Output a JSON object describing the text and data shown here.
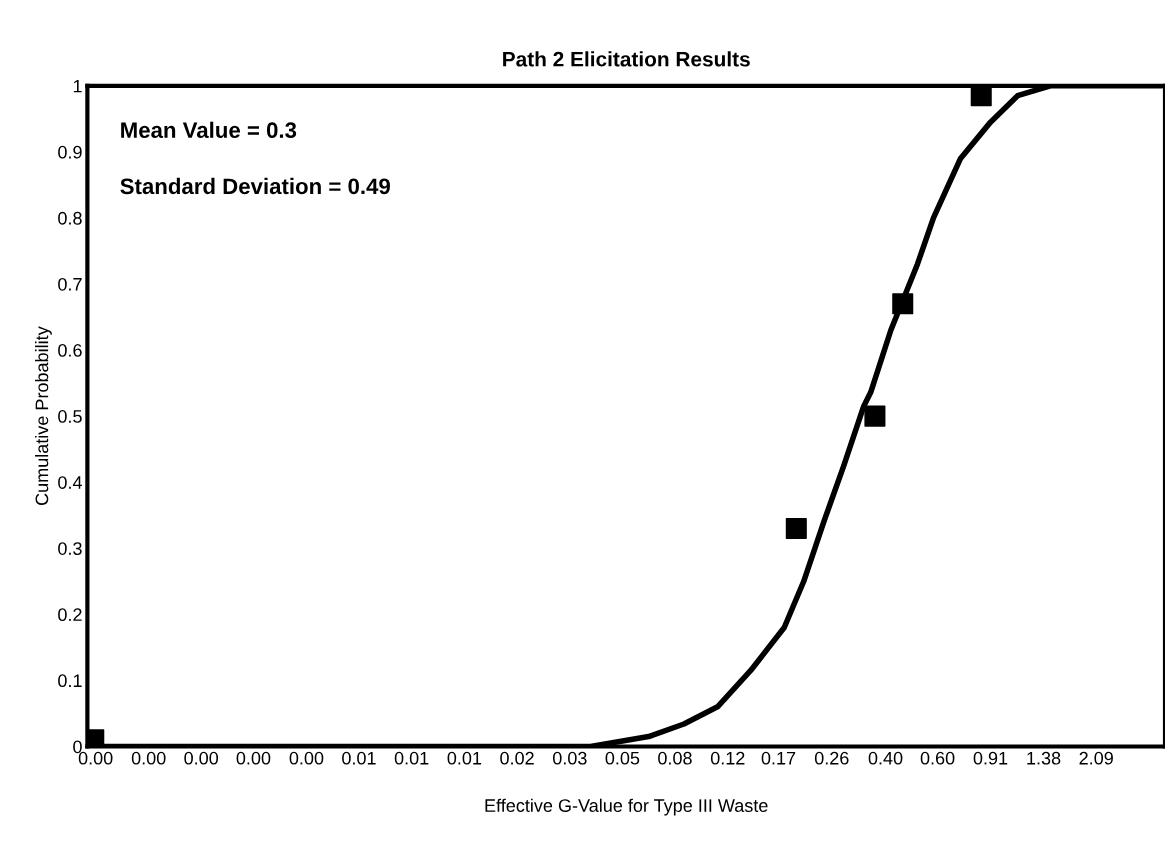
{
  "chart_data": {
    "type": "line",
    "title": "Path 2 Elicitation Results",
    "xlabel": "Effective G-Value for Type III Waste",
    "ylabel": "Cumulative Probability",
    "annotations": [
      "Mean Value = 0.3",
      "Standard Deviation = 0.49"
    ],
    "log": "x",
    "grid": false,
    "legend": false,
    "xlim": [
      0.00078,
      3.58
    ],
    "ylim": [
      0,
      1
    ],
    "xticks": [
      {
        "value": 0.000832,
        "label": "0.00"
      },
      {
        "value": 0.00126,
        "label": "0.00"
      },
      {
        "value": 0.0019,
        "label": "0.00"
      },
      {
        "value": 0.00286,
        "label": "0.00"
      },
      {
        "value": 0.00433,
        "label": "0.00"
      },
      {
        "value": 0.00653,
        "label": "0.01"
      },
      {
        "value": 0.00986,
        "label": "0.01"
      },
      {
        "value": 0.0149,
        "label": "0.01"
      },
      {
        "value": 0.0225,
        "label": "0.02"
      },
      {
        "value": 0.034,
        "label": "0.03"
      },
      {
        "value": 0.0513,
        "label": "0.05"
      },
      {
        "value": 0.0774,
        "label": "0.08"
      },
      {
        "value": 0.117,
        "label": "0.12"
      },
      {
        "value": 0.174,
        "label": "0.17"
      },
      {
        "value": 0.264,
        "label": "0.26"
      },
      {
        "value": 0.402,
        "label": "0.40"
      },
      {
        "value": 0.604,
        "label": "0.60"
      },
      {
        "value": 0.914,
        "label": "0.91"
      },
      {
        "value": 1.384,
        "label": "1.38"
      },
      {
        "value": 2.09,
        "label": "2.09"
      }
    ],
    "yticks": [
      0,
      0.1,
      0.2,
      0.3,
      0.4,
      0.5,
      0.6,
      0.7,
      0.8,
      0.9,
      1
    ],
    "series": [
      {
        "color": "#000000",
        "marker": "none",
        "line_style": "solid",
        "x": [
          0.00082,
          0.04,
          0.063,
          0.083,
          0.108,
          0.14,
          0.182,
          0.212,
          0.248,
          0.29,
          0.339,
          0.358,
          0.419,
          0.516,
          0.585,
          0.723,
          0.914,
          1.13,
          1.46,
          3.44
        ],
        "values": [
          0,
          0,
          0.015,
          0.034,
          0.06,
          0.115,
          0.18,
          0.25,
          0.34,
          0.425,
          0.515,
          0.536,
          0.63,
          0.73,
          0.8,
          0.89,
          0.945,
          0.985,
          1.0,
          1.0
        ]
      },
      {
        "type": "scatter",
        "color": "#000000",
        "marker": "square",
        "x": [
          0.00082,
          0.2,
          0.37,
          0.46,
          0.85
        ],
        "values": [
          0.01,
          0.33,
          0.5,
          0.67,
          0.985
        ]
      }
    ]
  }
}
